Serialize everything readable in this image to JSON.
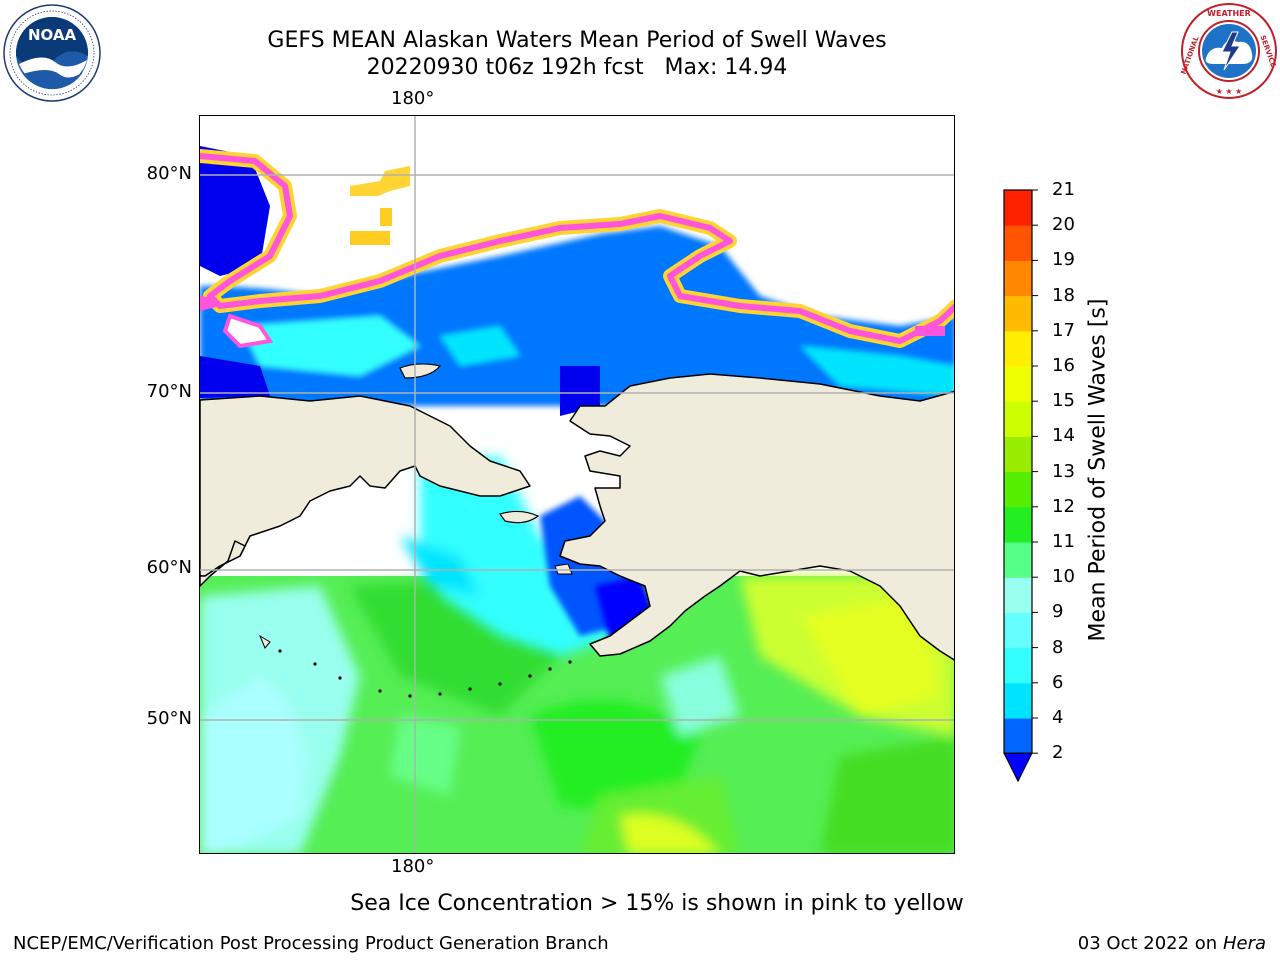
{
  "header": {
    "title_line1": "GEFS MEAN Alaskan Waters Mean Period of Swell Waves",
    "title_line2": "20220930 t06z 192h fcst   Max: 14.94"
  },
  "logos": {
    "left": {
      "name": "NOAA",
      "ring_text": "NATIONAL OCEANIC AND ATMOSPHERIC ADMINISTRATION · U.S. DEPARTMENT OF COMMERCE"
    },
    "right": {
      "name": "NATIONAL WEATHER SERVICE"
    }
  },
  "map": {
    "lon_labels": {
      "top": "180°",
      "bottom": "180°"
    },
    "lat_labels": [
      "80°N",
      "70°N",
      "60°N",
      "50°N"
    ],
    "land_color": "#efecdc",
    "grid_color": "#b0b0b0"
  },
  "colorbar": {
    "title": "Mean Period of Swell Waves [s]",
    "ticks": [
      "2",
      "4",
      "6",
      "8",
      "9",
      "10",
      "11",
      "12",
      "13",
      "14",
      "15",
      "16",
      "17",
      "18",
      "19",
      "20",
      "21"
    ],
    "colors": [
      "#0066ff",
      "#00e5ff",
      "#33ffff",
      "#66ffff",
      "#99ffee",
      "#55ff88",
      "#22ee22",
      "#55ee00",
      "#99ee00",
      "#ccff00",
      "#eeff00",
      "#ffee00",
      "#ffbb00",
      "#ff8800",
      "#ff5500",
      "#ff2200"
    ],
    "extend_color": "#0000ff"
  },
  "note": "Sea Ice Concentration > 15% is shown in pink to yellow",
  "footer": {
    "left": "NCEP/EMC/Verification Post Processing Product Generation Branch",
    "right_date": "03 Oct 2022 on",
    "right_host": "Hera"
  }
}
